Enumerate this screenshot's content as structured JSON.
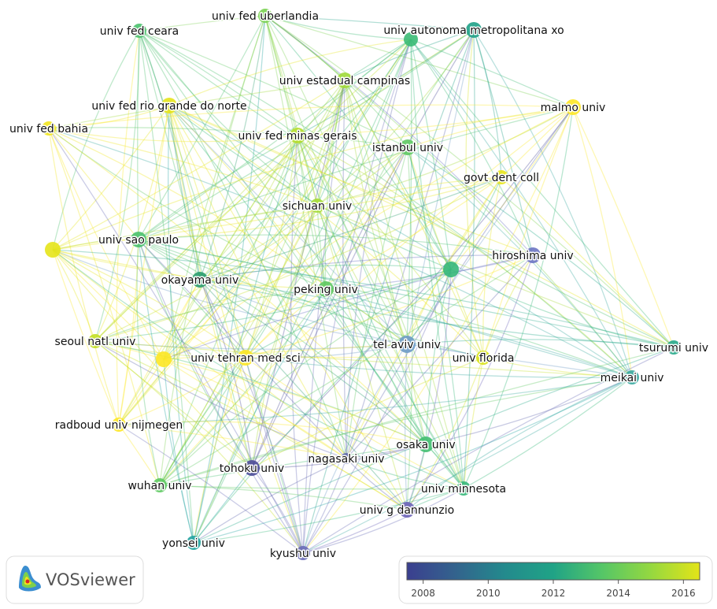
{
  "network": {
    "nodes": [
      {
        "label": "univ fed uberlandia",
        "color": "#7ad151"
      },
      {
        "label": "univ fed ceara",
        "color": "#4ac16d"
      },
      {
        "label": "univ autonoma metropolitana xo",
        "color": "#1fa187"
      },
      {
        "label": null,
        "color": "#3bbb75"
      },
      {
        "label": "univ estadual campinas",
        "color": "#a0da39"
      },
      {
        "label": "univ fed rio grande do norte",
        "color": "#e5e419"
      },
      {
        "label": "malmo univ",
        "color": "#fde725"
      },
      {
        "label": "univ fed bahia",
        "color": "#f1e51d"
      },
      {
        "label": "univ fed minas gerais",
        "color": "#b5de2b"
      },
      {
        "label": "istanbul univ",
        "color": "#5ec962"
      },
      {
        "label": "govt dent coll",
        "color": "#e8e419"
      },
      {
        "label": "sichuan univ",
        "color": "#a5db36"
      },
      {
        "label": "univ sao paulo",
        "color": "#4ac16d"
      },
      {
        "label": null,
        "color": "#e5e419"
      },
      {
        "label": "hiroshima univ",
        "color": "#6b74c3"
      },
      {
        "label": null,
        "color": "#35b779"
      },
      {
        "label": "okayama univ",
        "color": "#2a9d6e"
      },
      {
        "label": "peking univ",
        "color": "#5ec962"
      },
      {
        "label": "seoul natl univ",
        "color": "#c2df23"
      },
      {
        "label": "tel aviv univ",
        "color": "#6e9bc6"
      },
      {
        "label": null,
        "color": "#fde725"
      },
      {
        "label": "univ tehran med sci",
        "color": "#fde725"
      },
      {
        "label": "univ florida",
        "color": "#d8e219"
      },
      {
        "label": "tsurumi univ",
        "color": "#26a88a"
      },
      {
        "label": "meikai univ",
        "color": "#3aa8a0"
      },
      {
        "label": "radboud univ nijmegen",
        "color": "#fde725"
      },
      {
        "label": "osaka univ",
        "color": "#43bf71"
      },
      {
        "label": "tohoku univ",
        "color": "#4b4b98"
      },
      {
        "label": "nagasaki univ",
        "color": "#6068b0"
      },
      {
        "label": "wuhan univ",
        "color": "#5ec962"
      },
      {
        "label": "univ minnesota",
        "color": "#35b779"
      },
      {
        "label": "univ g dannunzio",
        "color": "#6a62b8"
      },
      {
        "label": "yonsei univ",
        "color": "#22a3a0"
      },
      {
        "label": "kyushu univ",
        "color": "#6a6cb8"
      }
    ],
    "colorbar": {
      "range": [
        2007.5,
        2016.5
      ],
      "ticks": [
        2008,
        2010,
        2012,
        2014,
        2016
      ],
      "colors": [
        "#3b3f8f",
        "#33638d",
        "#238a8d",
        "#20a386",
        "#55c667",
        "#95d840",
        "#e3e418"
      ]
    },
    "logo": "VOSviewer"
  }
}
